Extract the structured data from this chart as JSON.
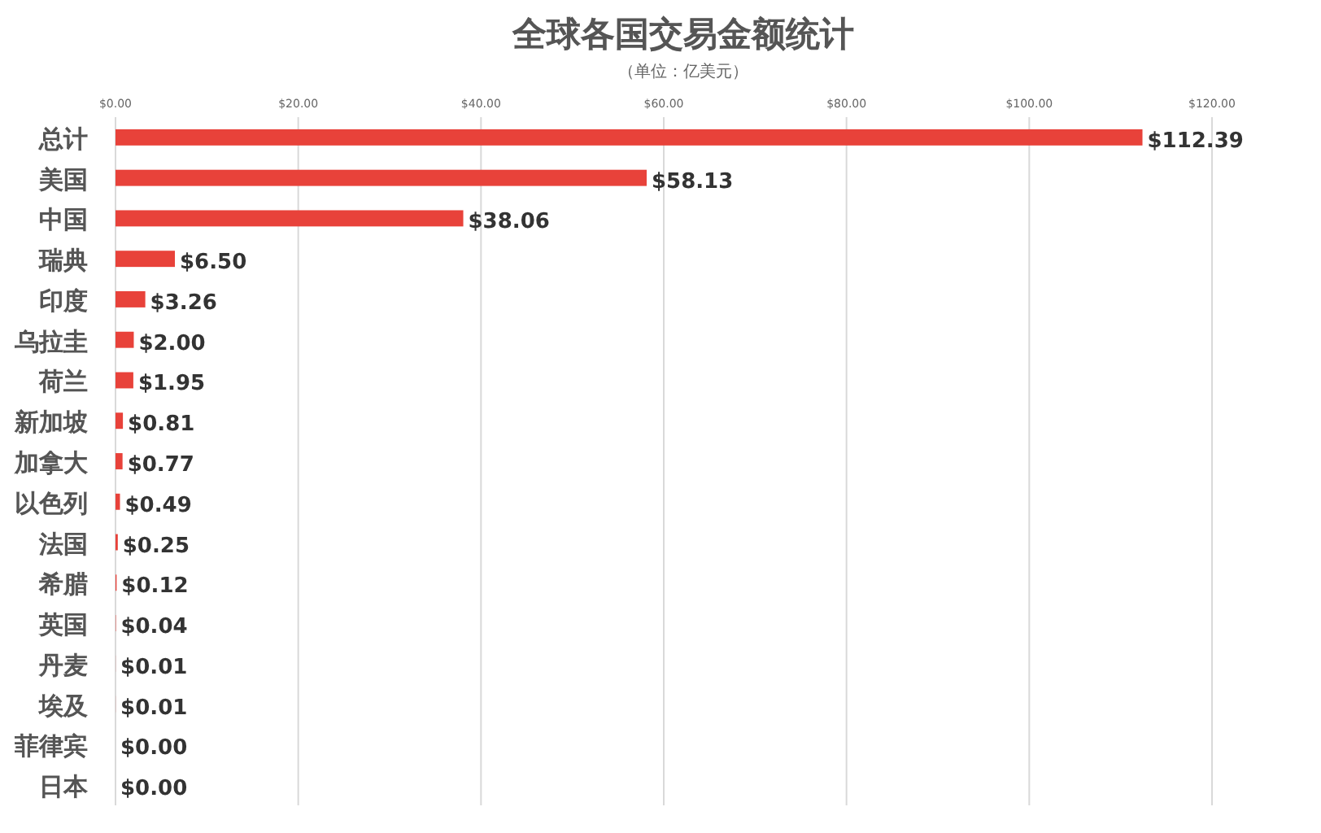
{
  "chart_data": {
    "type": "bar",
    "orientation": "horizontal",
    "title": "全球各国交易金额统计",
    "subtitle": "（单位：亿美元）",
    "categories": [
      "总计",
      "美国",
      "中国",
      "瑞典",
      "印度",
      "乌拉圭",
      "荷兰",
      "新加坡",
      "加拿大",
      "以色列",
      "法国",
      "希腊",
      "英国",
      "丹麦",
      "埃及",
      "菲律宾",
      "日本"
    ],
    "values": [
      112.39,
      58.13,
      38.06,
      6.5,
      3.26,
      2.0,
      1.95,
      0.81,
      0.77,
      0.49,
      0.25,
      0.12,
      0.04,
      0.01,
      0.01,
      0.0,
      0.0
    ],
    "value_labels": [
      "$112.39",
      "$58.13",
      "$38.06",
      "$6.50",
      "$3.26",
      "$2.00",
      "$1.95",
      "$0.81",
      "$0.77",
      "$0.49",
      "$0.25",
      "$0.12",
      "$0.04",
      "$0.01",
      "$0.01",
      "$0.00",
      "$0.00"
    ],
    "color": "#e8423a",
    "xlim": [
      0,
      120
    ],
    "xticks": [
      {
        "value": 0,
        "label": "$0.00"
      },
      {
        "value": 20,
        "label": "$20.00"
      },
      {
        "value": 40,
        "label": "$40.00"
      },
      {
        "value": 60,
        "label": "$60.00"
      },
      {
        "value": 80,
        "label": "$80.00"
      },
      {
        "value": 100,
        "label": "$100.00"
      },
      {
        "value": 120,
        "label": "$120.00"
      }
    ],
    "grid": "x"
  }
}
